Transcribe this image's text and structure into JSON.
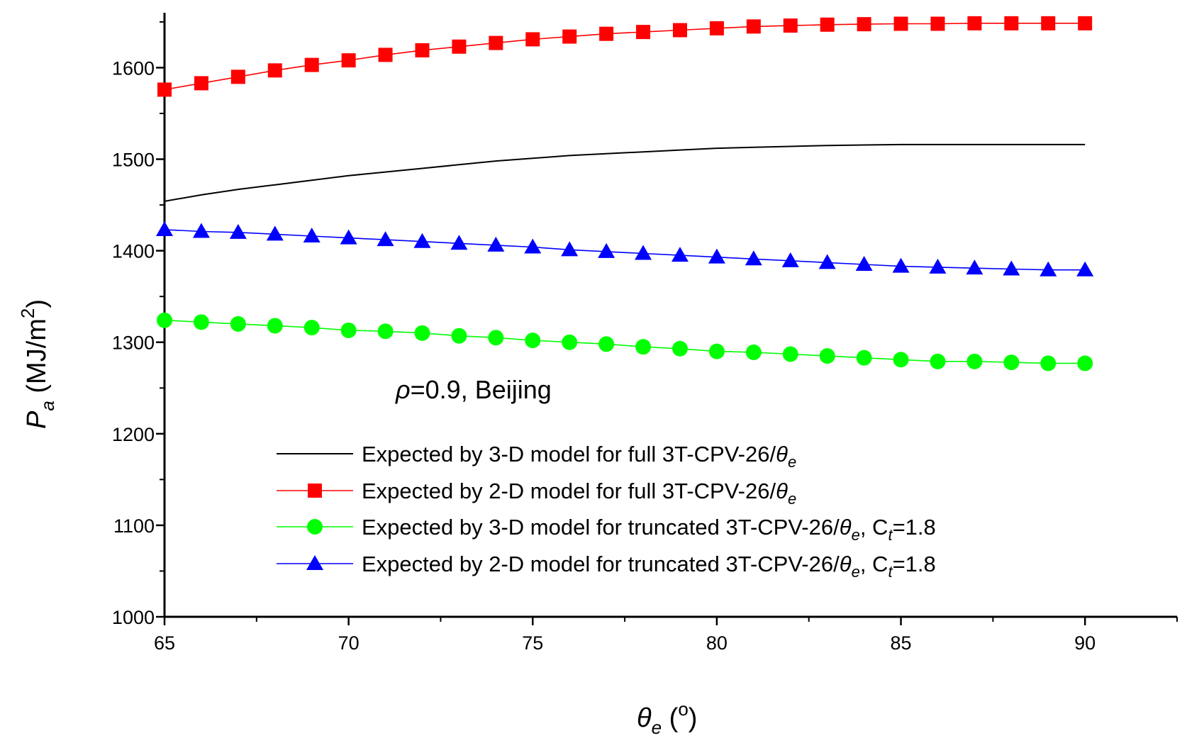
{
  "chart_data": {
    "type": "line",
    "title": "",
    "xlabel": {
      "symbol": "θ",
      "sub": "e",
      "unit_open": " (",
      "unit_sup": "o",
      "unit_close": ")"
    },
    "ylabel": {
      "symbol": "P",
      "sub": "a",
      "unit_open": " (MJ/m",
      "unit_sup": "2",
      "unit_close": ")"
    },
    "xlim": [
      65,
      92.5
    ],
    "ylim": [
      1000,
      1660
    ],
    "xticks": [
      65,
      70,
      75,
      80,
      85,
      90
    ],
    "xtick_labels": [
      "65",
      "70",
      "75",
      "80",
      "85",
      "90"
    ],
    "yticks": [
      1000,
      1100,
      1200,
      1300,
      1400,
      1500,
      1600
    ],
    "ytick_labels": [
      "1000",
      "1100",
      "1200",
      "1300",
      "1400",
      "1500",
      "1600"
    ],
    "annotation": {
      "symbol": "ρ",
      "text": "=0.9, Beijing"
    },
    "legend_position": "lower-right",
    "x": [
      65,
      66,
      67,
      68,
      69,
      70,
      71,
      72,
      73,
      74,
      75,
      76,
      77,
      78,
      79,
      80,
      81,
      82,
      83,
      84,
      85,
      86,
      87,
      88,
      89,
      90
    ],
    "series": [
      {
        "key": "s3d_full",
        "name": "Expected by 3-D model for full 3T-CPV-26/θe",
        "legend_text": "Expected by 3-D model for full 3T-CPV-26/",
        "legend_sym": "θ",
        "legend_sub": "e",
        "legend_tail": "",
        "legend_tail_sub": "",
        "legend_tail2": "",
        "color": "#000000",
        "marker": "none",
        "values": [
          1454,
          1461,
          1467,
          1472,
          1477,
          1482,
          1486,
          1490,
          1494,
          1498,
          1501,
          1504,
          1506,
          1508,
          1510,
          1512,
          1513,
          1514,
          1515,
          1515.5,
          1516,
          1516,
          1516,
          1516,
          1516,
          1516
        ]
      },
      {
        "key": "s2d_full",
        "name": "Expected by 2-D model for full 3T-CPV-26/θe",
        "legend_text": "Expected by 2-D model for full 3T-CPV-26/",
        "legend_sym": "θ",
        "legend_sub": "e",
        "legend_tail": "",
        "legend_tail_sub": "",
        "legend_tail2": "",
        "color": "#ff0000",
        "marker": "square",
        "values": [
          1576,
          1583,
          1590,
          1597,
          1603,
          1608,
          1614,
          1619,
          1623,
          1627,
          1631,
          1634,
          1637,
          1639,
          1641,
          1643,
          1645,
          1646,
          1647,
          1647.5,
          1648,
          1648,
          1648.5,
          1648.5,
          1648.5,
          1648.5
        ]
      },
      {
        "key": "s3d_trunc",
        "name": "Expected by 3-D model for truncated 3T-CPV-26/θe, Ct=1.8",
        "legend_text": "Expected by 3-D model for truncated 3T-CPV-26/",
        "legend_sym": "θ",
        "legend_sub": "e",
        "legend_tail": ", C",
        "legend_tail_sub": "t",
        "legend_tail2": "=1.8",
        "color": "#00ff00",
        "marker": "circle",
        "values": [
          1324,
          1322,
          1320,
          1318,
          1316,
          1313,
          1312,
          1310,
          1307,
          1305,
          1302,
          1300,
          1298,
          1295,
          1293,
          1290,
          1289,
          1287,
          1285,
          1283,
          1281,
          1279,
          1279,
          1278,
          1277,
          1277
        ]
      },
      {
        "key": "s2d_trunc",
        "name": "Expected by 2-D model for truncated 3T-CPV-26/θe, Ct=1.8",
        "legend_text": "Expected by 2-D model for truncated 3T-CPV-26/",
        "legend_sym": "θ",
        "legend_sub": "e",
        "legend_tail": ", C",
        "legend_tail_sub": "t",
        "legend_tail2": "=1.8",
        "color": "#0000ff",
        "marker": "triangle",
        "values": [
          1423,
          1421,
          1420,
          1418,
          1416,
          1414,
          1412,
          1410,
          1408,
          1406,
          1404,
          1401,
          1399,
          1397,
          1395,
          1393,
          1391,
          1389,
          1387,
          1385,
          1383,
          1382,
          1381,
          1380,
          1379,
          1379
        ]
      }
    ],
    "legend_order": [
      "s3d_full",
      "s2d_full",
      "s3d_trunc",
      "s2d_trunc"
    ]
  }
}
